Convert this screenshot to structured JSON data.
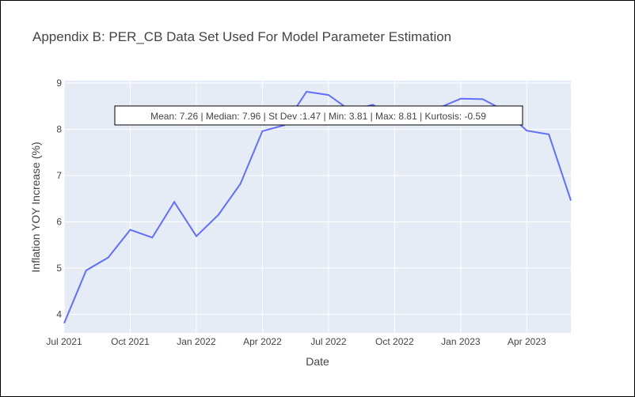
{
  "chart_data": {
    "type": "line",
    "title": "Appendix B: PER_CB Data Set Used For Model Parameter Estimation",
    "xlabel": "Date",
    "ylabel": "Inflation YOY Increase (%)",
    "x": [
      "2021-07",
      "2021-08",
      "2021-09",
      "2021-10",
      "2021-11",
      "2021-12",
      "2022-01",
      "2022-02",
      "2022-03",
      "2022-04",
      "2022-05",
      "2022-06",
      "2022-07",
      "2022-08",
      "2022-09",
      "2022-10",
      "2022-11",
      "2022-12",
      "2023-01",
      "2023-02",
      "2023-03",
      "2023-04",
      "2023-05",
      "2023-06"
    ],
    "series": [
      {
        "values": [
          3.81,
          4.95,
          5.23,
          5.83,
          5.66,
          6.43,
          5.69,
          6.15,
          6.82,
          7.96,
          8.09,
          8.81,
          8.74,
          8.4,
          8.53,
          8.28,
          8.45,
          8.46,
          8.66,
          8.65,
          8.4,
          7.97,
          7.89,
          6.46
        ]
      }
    ],
    "ylim": [
      3.6,
      9.05
    ],
    "yticks": [
      4,
      5,
      6,
      7,
      8,
      9
    ],
    "xticks": [
      {
        "date": "2021-07",
        "label": "Jul 2021"
      },
      {
        "date": "2021-10",
        "label": "Oct 2021"
      },
      {
        "date": "2022-01",
        "label": "Jan 2022"
      },
      {
        "date": "2022-04",
        "label": "Apr 2022"
      },
      {
        "date": "2022-07",
        "label": "Jul 2022"
      },
      {
        "date": "2022-10",
        "label": "Oct 2022"
      },
      {
        "date": "2023-01",
        "label": "Jan 2023"
      },
      {
        "date": "2023-04",
        "label": "Apr 2023"
      }
    ],
    "grid": true,
    "colors": {
      "line": "#636efa",
      "plot_bg": "#e5ecf6",
      "grid": "#ffffff",
      "text": "#444444"
    },
    "annotation": "Mean: 7.26 | Median: 7.96 | St Dev :1.47 | Min: 3.81 | Max: 8.81 | Kurtosis: -0.59"
  }
}
